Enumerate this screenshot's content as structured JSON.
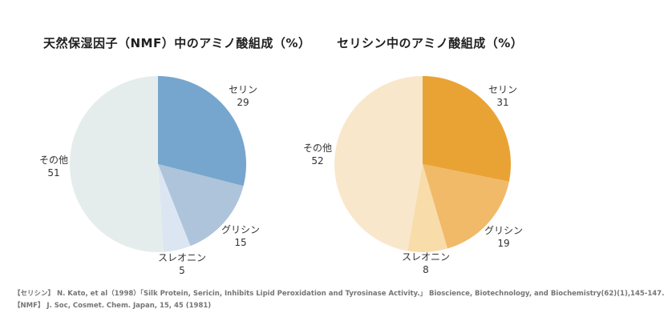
{
  "page": {
    "background": "#ffffff"
  },
  "chart_data": [
    {
      "type": "pie",
      "title": "天然保湿因子（NMF）中のアミノ酸組成（%）",
      "unit": "%",
      "labels": [
        "セリン",
        "グリシン",
        "スレオニン",
        "その他"
      ],
      "slice_ids": [
        "serine",
        "glycine",
        "threonine",
        "others"
      ],
      "values": [
        29,
        15,
        5,
        51
      ],
      "colors": [
        "#76a6cd",
        "#aec4da",
        "#dce6f2",
        "#e5edec"
      ],
      "start_angle": "top",
      "direction": "clockwise",
      "legend": "none",
      "labels_position": "outside"
    },
    {
      "type": "pie",
      "title": "セリシン中のアミノ酸組成（%）",
      "unit": "%",
      "labels": [
        "セリン",
        "グリシン",
        "スレオニン",
        "その他"
      ],
      "slice_ids": [
        "serine",
        "glycine",
        "threonine",
        "others"
      ],
      "values": [
        31,
        19,
        8,
        52
      ],
      "colors": [
        "#e9a335",
        "#f0ba69",
        "#f8dcaa",
        "#f9e7cc"
      ],
      "start_angle": "top",
      "direction": "clockwise",
      "legend": "none",
      "labels_position": "outside"
    }
  ],
  "footer": {
    "lines": [
      "【セリシン】 N. Kato, et al（1998）「Silk Protein, Sericin, Inhibits Lipid Peroxidation and Tyrosinase Activity.」 Bioscience, Biotechnology, and Biochemistry(62)(1),145-147.",
      "【NMF】 J. Soc, Cosmet. Chem. Japan, 15, 45 (1981)"
    ]
  }
}
